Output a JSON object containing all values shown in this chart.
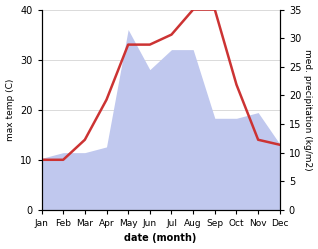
{
  "months": [
    "Jan",
    "Feb",
    "Mar",
    "Apr",
    "May",
    "Jun",
    "Jul",
    "Aug",
    "Sep",
    "Oct",
    "Nov",
    "Dec"
  ],
  "temperature": [
    10,
    10,
    14,
    22,
    33,
    33,
    35,
    40,
    40,
    25,
    14,
    13
  ],
  "precipitation_kg": [
    9,
    10,
    10,
    11,
    31.5,
    24.5,
    28,
    28,
    16,
    16,
    17,
    11.5
  ],
  "temp_ylim": [
    0,
    40
  ],
  "precip_ylim_max": 35,
  "temp_color": "#cc3333",
  "precip_color": "#c0c8ee",
  "xlabel": "date (month)",
  "ylabel_left": "max temp (C)",
  "ylabel_right": "med. precipitation (kg/m2)",
  "bg_color": "#ffffff",
  "grid_color": "#cccccc",
  "temp_lw": 1.8
}
